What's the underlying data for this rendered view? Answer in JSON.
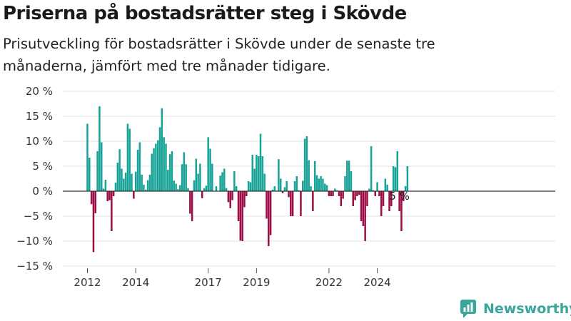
{
  "title": "Priserna på bostadsrätter steg i Skövde",
  "subtitle": "Prisutveckling för bostadsrätter i Skövde under de senaste tre månaderna, jämfört med tre månader tidigare.",
  "brand": {
    "name": "Newsworthy",
    "icon": "bar-chart-logo-icon",
    "color": "#3aa59a"
  },
  "colors": {
    "positive": "#17a398",
    "negative": "#9b0d45"
  },
  "chart_data": {
    "type": "bar",
    "title": "Priserna på bostadsrätter steg i Skövde",
    "ylim": [
      -15,
      20
    ],
    "yticks": [
      20,
      15,
      10,
      5,
      0,
      -5,
      -10,
      -15
    ],
    "ytick_labels": [
      "20 %",
      "15 %",
      "10 %",
      "5 %",
      "0 %",
      "−5 %",
      "−10 %",
      "−15 %"
    ],
    "x_start": "2012-01",
    "x_frequency": "monthly",
    "xtick_labels": [
      "2012",
      "2014",
      "2017",
      "2019",
      "2022",
      "2024"
    ],
    "xtick_dates": [
      "2012-01",
      "2014-01",
      "2017-01",
      "2019-01",
      "2022-01",
      "2024-01"
    ],
    "grid": true,
    "legend": "none",
    "annotation": {
      "date": "2024-12",
      "text": "5 %"
    },
    "values": [
      13.5,
      6.7,
      -2.6,
      -12.2,
      -4.4,
      8,
      17,
      9.8,
      0.5,
      2.3,
      -2,
      -1.8,
      -8,
      -1,
      1.7,
      5.7,
      8.4,
      4.5,
      2.5,
      3.7,
      13.5,
      12.5,
      3.5,
      -1.5,
      3.9,
      8.3,
      9.8,
      3.3,
      1.3,
      0.3,
      2.2,
      3.3,
      7.5,
      8.6,
      9.5,
      10.2,
      12.8,
      16.6,
      10.8,
      9.5,
      4.3,
      7.4,
      8,
      2.1,
      1.5,
      0.4,
      1.2,
      5.4,
      7.8,
      5.4,
      0.6,
      -4.5,
      -6,
      2.2,
      6.5,
      3.5,
      5.5,
      -1.4,
      0.6,
      1.1,
      10.8,
      8.5,
      5.5,
      0,
      1,
      0,
      3.1,
      3.8,
      4.5,
      0.6,
      -2.2,
      -3.4,
      -1.8,
      4,
      1,
      -6,
      -9.9,
      -10,
      -3.2,
      -1,
      2,
      1.8,
      7.3,
      4.5,
      7.3,
      7,
      11.5,
      7,
      3.5,
      -5.5,
      -11,
      -8.8,
      0.3,
      1,
      0.1,
      6.4,
      2.5,
      -0.4,
      0.8,
      2,
      -1.2,
      -5,
      -5,
      2,
      3,
      0.2,
      -5,
      2.1,
      10.5,
      11,
      6.2,
      1,
      -4,
      6,
      3.2,
      2.5,
      3,
      2.5,
      1.5,
      1.2,
      -1,
      -1,
      -1,
      0.5,
      0.2,
      -1,
      -3,
      -1.5,
      3,
      6.1,
      6.1,
      4,
      -3,
      -1.8,
      -1,
      -0.7,
      -6,
      -7,
      -10,
      -3,
      0.5,
      9,
      0.2,
      -1,
      1.8,
      -1,
      -5,
      -3,
      2.5,
      1.3,
      -4,
      -3,
      5,
      4.8,
      8,
      -4,
      -8,
      -2,
      1,
      5
    ]
  }
}
